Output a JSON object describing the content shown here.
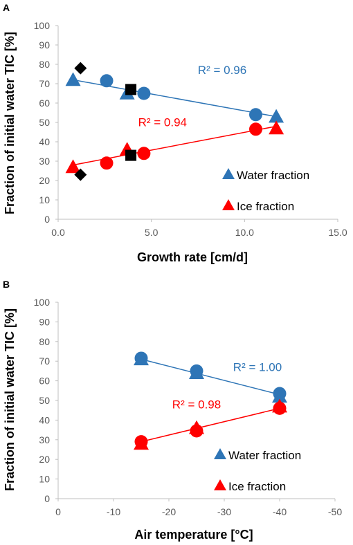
{
  "colors": {
    "water": "#2e75b6",
    "ice": "#ff0000",
    "black": "#000000",
    "axis": "#bfbfbf",
    "tick_text": "#595959"
  },
  "chart_data": [
    {
      "panel": "A",
      "type": "scatter",
      "xlabel": "Growth rate [cm/d]",
      "ylabel": "Fraction of initial water TIC [%]",
      "xlim": [
        0,
        15
      ],
      "ylim": [
        0,
        100
      ],
      "xticks": [
        "0.0",
        "5.0",
        "10.0",
        "15.0"
      ],
      "yticks": [
        "0",
        "10",
        "20",
        "30",
        "40",
        "50",
        "60",
        "70",
        "80",
        "90",
        "100"
      ],
      "series": [
        {
          "name": "Water fraction",
          "marker": "triangle",
          "color": "#2e75b6",
          "points": [
            [
              0.8,
              72
            ],
            [
              3.7,
              65
            ],
            [
              11.7,
              53
            ]
          ]
        },
        {
          "marker": "circle",
          "color": "#2e75b6",
          "points": [
            [
              2.6,
              71.5
            ],
            [
              4.6,
              65
            ],
            [
              10.6,
              54
            ]
          ]
        },
        {
          "name": "Ice fraction",
          "marker": "triangle",
          "color": "#ff0000",
          "points": [
            [
              0.8,
              27
            ],
            [
              3.7,
              36
            ],
            [
              11.7,
              47
            ]
          ]
        },
        {
          "marker": "circle",
          "color": "#ff0000",
          "points": [
            [
              2.6,
              29
            ],
            [
              4.6,
              34
            ],
            [
              10.6,
              46.5
            ]
          ]
        },
        {
          "marker": "diamond",
          "color": "#000000",
          "points": [
            [
              1.2,
              78
            ],
            [
              1.2,
              23
            ]
          ]
        },
        {
          "marker": "square",
          "color": "#000000",
          "points": [
            [
              3.9,
              67
            ],
            [
              3.9,
              33
            ]
          ]
        }
      ],
      "trendlines": [
        {
          "color": "#2e75b6",
          "from": [
            0.8,
            72
          ],
          "to": [
            11.7,
            53
          ],
          "label": "R² = 0.96",
          "label_at": [
            8.8,
            75
          ]
        },
        {
          "color": "#ff0000",
          "from": [
            0.8,
            28
          ],
          "to": [
            11.7,
            48
          ],
          "label": "R² = 0.94",
          "label_at": [
            5.6,
            48
          ]
        }
      ],
      "legend": {
        "position": "right",
        "entries": [
          "Water fraction",
          "Ice fraction"
        ]
      }
    },
    {
      "panel": "B",
      "type": "scatter",
      "xlabel": "Air temperature [°C]",
      "ylabel": "Fraction of initial water TIC [%]",
      "xlim": [
        0,
        -50
      ],
      "ylim": [
        0,
        100
      ],
      "xticks": [
        "0",
        "-10",
        "-20",
        "-30",
        "-40",
        "-50"
      ],
      "yticks": [
        "0",
        "10",
        "20",
        "30",
        "40",
        "50",
        "60",
        "70",
        "80",
        "90",
        "100"
      ],
      "series": [
        {
          "name": "Water fraction",
          "marker": "triangle",
          "color": "#2e75b6",
          "points": [
            [
              -15,
              71
            ],
            [
              -25,
              64
            ],
            [
              -40,
              52
            ]
          ]
        },
        {
          "marker": "circle",
          "color": "#2e75b6",
          "points": [
            [
              -15,
              71.5
            ],
            [
              -25,
              65
            ],
            [
              -40,
              53.5
            ]
          ]
        },
        {
          "name": "Ice fraction",
          "marker": "triangle",
          "color": "#ff0000",
          "points": [
            [
              -15,
              28
            ],
            [
              -25,
              36
            ],
            [
              -40,
              47
            ]
          ]
        },
        {
          "marker": "circle",
          "color": "#ff0000",
          "points": [
            [
              -15,
              29
            ],
            [
              -25,
              34.5
            ],
            [
              -40,
              46
            ]
          ]
        }
      ],
      "trendlines": [
        {
          "color": "#2e75b6",
          "from": [
            -15,
            71
          ],
          "to": [
            -40,
            53
          ],
          "label": "R² = 1.00",
          "label_at": [
            -36,
            65
          ]
        },
        {
          "color": "#ff0000",
          "from": [
            -15,
            29
          ],
          "to": [
            -40,
            46
          ],
          "label": "R² = 0.98",
          "label_at": [
            -25,
            46
          ]
        }
      ],
      "legend": {
        "position": "right",
        "entries": [
          "Water fraction",
          "Ice fraction"
        ]
      }
    }
  ]
}
